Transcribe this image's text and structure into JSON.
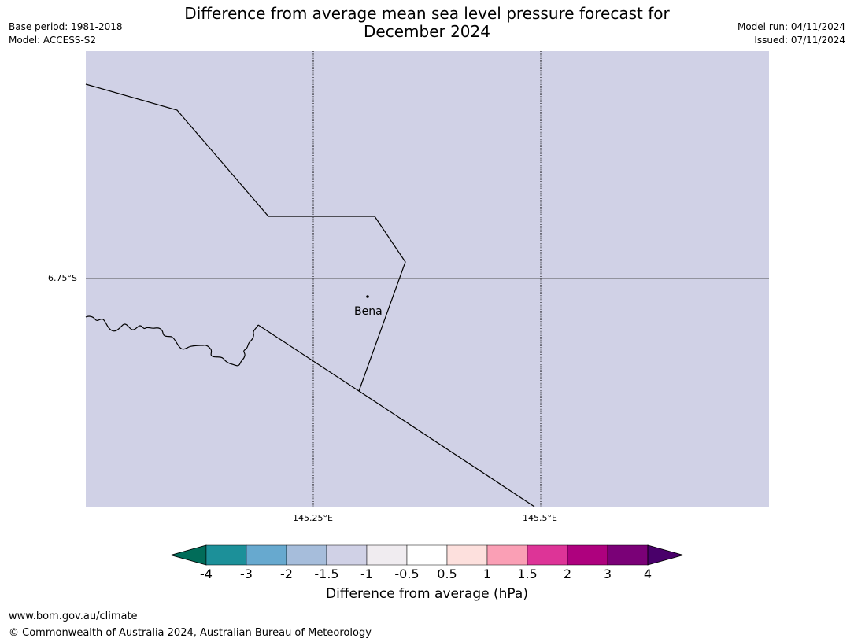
{
  "header": {
    "title_line1": "Difference from average mean sea level pressure forecast for",
    "title_line2": "December 2024",
    "base_period": "Base period: 1981-2018",
    "model": "Model: ACCESS-S2",
    "model_run": "Model run: 04/11/2024",
    "issued": "Issued: 07/11/2024"
  },
  "map": {
    "background_color": "#d0d1e6",
    "lat_label": "6.75°S",
    "lon_labels": [
      "145.25°E",
      "145.5°E"
    ],
    "place": {
      "name": "Bena"
    }
  },
  "colorbar": {
    "label": "Difference from average (hPa)",
    "ticks": [
      "-4",
      "-3",
      "-2",
      "-1.5",
      "-1",
      "-0.5",
      "0.5",
      "1",
      "1.5",
      "2",
      "3",
      "4"
    ],
    "colors": [
      "#016c59",
      "#1c9099",
      "#67a9cf",
      "#a6bddb",
      "#d0d1e6",
      "#f0ecf0",
      "#ffffff",
      "#fde0dd",
      "#fa9fb5",
      "#dd3497",
      "#ae017e",
      "#7a0177",
      "#49006a"
    ]
  },
  "footer": {
    "url": "www.bom.gov.au/climate",
    "copyright": "© Commonwealth of Australia 2024, Australian Bureau of Meteorology"
  }
}
